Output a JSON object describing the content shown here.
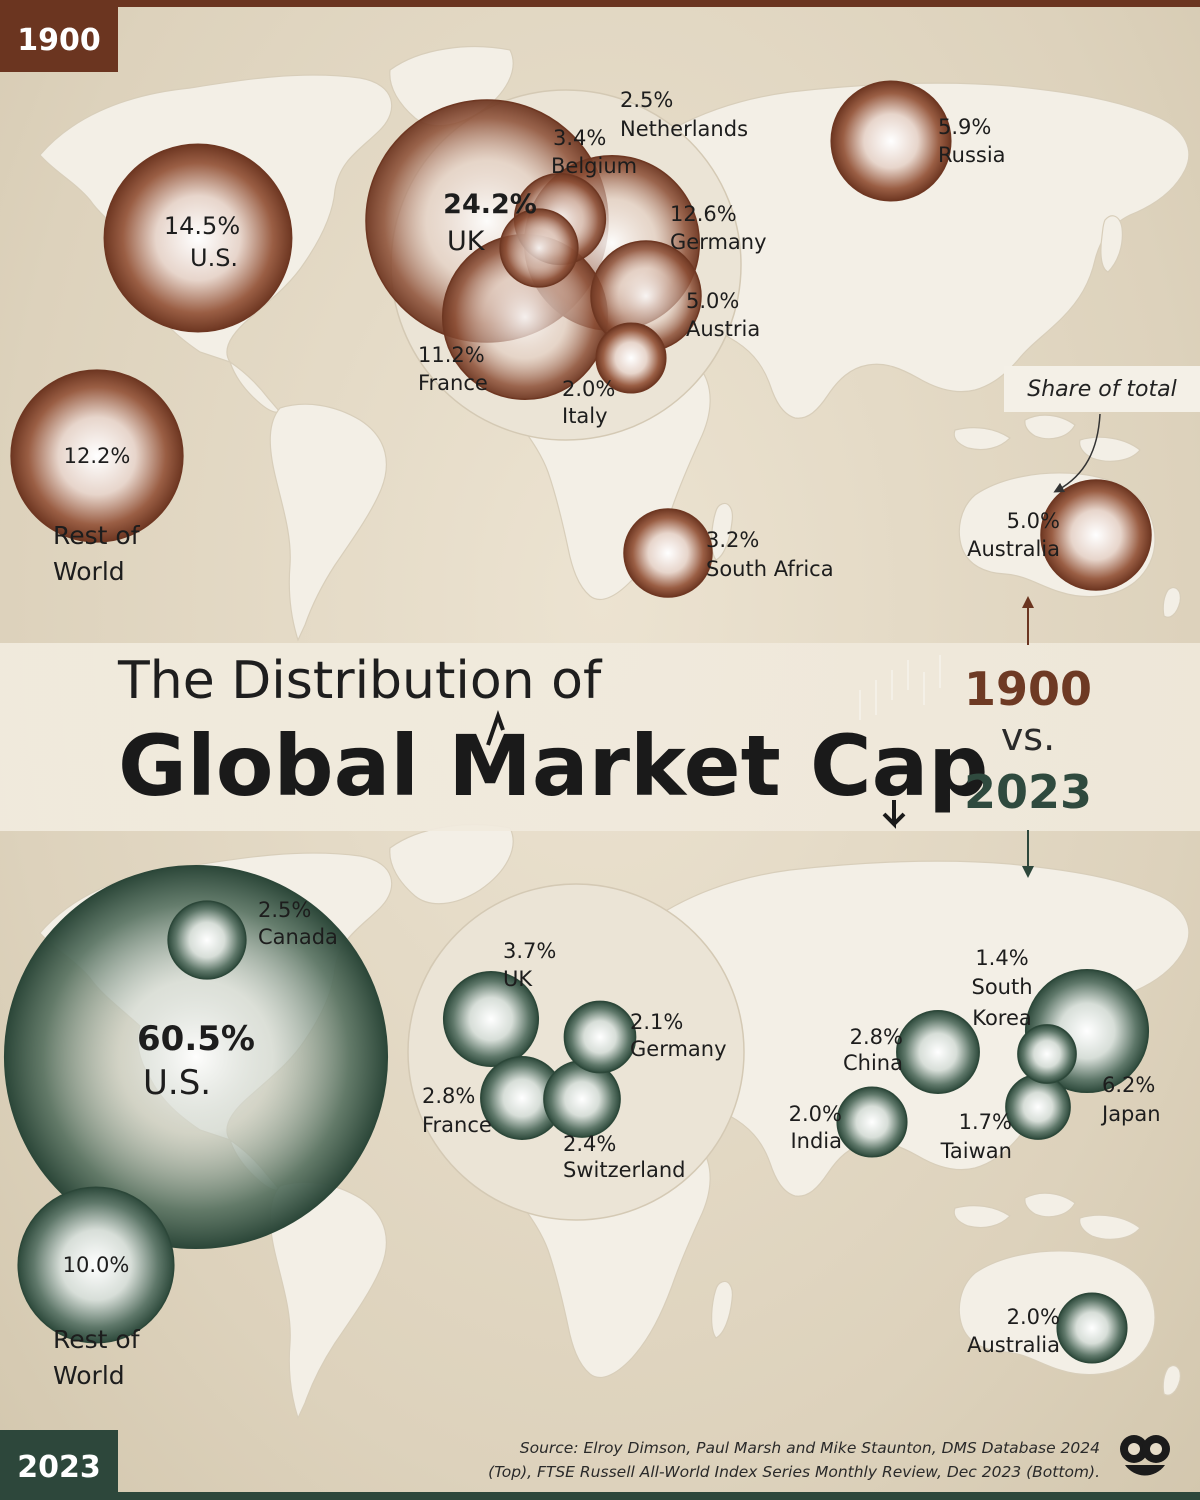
{
  "tags": {
    "top": "1900",
    "bottom": "2023"
  },
  "title": {
    "line1": "The Distribution of",
    "line2": "Global Market Cap"
  },
  "comparison": {
    "year1": "1900",
    "vs": "vs.",
    "year2": "2023"
  },
  "annotation": "Share of total",
  "source": {
    "line1": "Source: Elroy Dimson, Paul Marsh and Mike Staunton, DMS Database 2024",
    "line2": "(Top), FTSE Russell All-World Index Series Monthly Review, Dec 2023 (Bottom)."
  },
  "colors": {
    "y1900": "#7a3f28",
    "y2023": "#34503f",
    "tag1900": "#6b3520",
    "tag2023": "#2d473b",
    "land": "#f3efe6",
    "ocean": "#ddd2bc"
  },
  "map_1900": [
    {
      "country": "UK",
      "value": "24.2%",
      "share": 24.2
    },
    {
      "country": "U.S.",
      "value": "14.5%",
      "share": 14.5
    },
    {
      "country": "Germany",
      "value": "12.6%",
      "share": 12.6
    },
    {
      "country": "Rest of World",
      "value": "12.2%",
      "share": 12.2
    },
    {
      "country": "France",
      "value": "11.2%",
      "share": 11.2
    },
    {
      "country": "Russia",
      "value": "5.9%",
      "share": 5.9
    },
    {
      "country": "Austria",
      "value": "5.0%",
      "share": 5.0
    },
    {
      "country": "Australia",
      "value": "5.0%",
      "share": 5.0
    },
    {
      "country": "Belgium",
      "value": "3.4%",
      "share": 3.4
    },
    {
      "country": "South Africa",
      "value": "3.2%",
      "share": 3.2
    },
    {
      "country": "Netherlands",
      "value": "2.5%",
      "share": 2.5
    },
    {
      "country": "Italy",
      "value": "2.0%",
      "share": 2.0
    }
  ],
  "map_2023": [
    {
      "country": "U.S.",
      "value": "60.5%",
      "share": 60.5
    },
    {
      "country": "Rest of World",
      "value": "10.0%",
      "share": 10.0
    },
    {
      "country": "Japan",
      "value": "6.2%",
      "share": 6.2
    },
    {
      "country": "UK",
      "value": "3.7%",
      "share": 3.7
    },
    {
      "country": "China",
      "value": "2.8%",
      "share": 2.8
    },
    {
      "country": "France",
      "value": "2.8%",
      "share": 2.8
    },
    {
      "country": "Canada",
      "value": "2.5%",
      "share": 2.5
    },
    {
      "country": "Switzerland",
      "value": "2.4%",
      "share": 2.4
    },
    {
      "country": "Germany",
      "value": "2.1%",
      "share": 2.1
    },
    {
      "country": "India",
      "value": "2.0%",
      "share": 2.0
    },
    {
      "country": "Australia",
      "value": "2.0%",
      "share": 2.0
    },
    {
      "country": "Taiwan",
      "value": "1.7%",
      "share": 1.7
    },
    {
      "country": "South Korea",
      "value": "1.4%",
      "share": 1.4
    }
  ]
}
